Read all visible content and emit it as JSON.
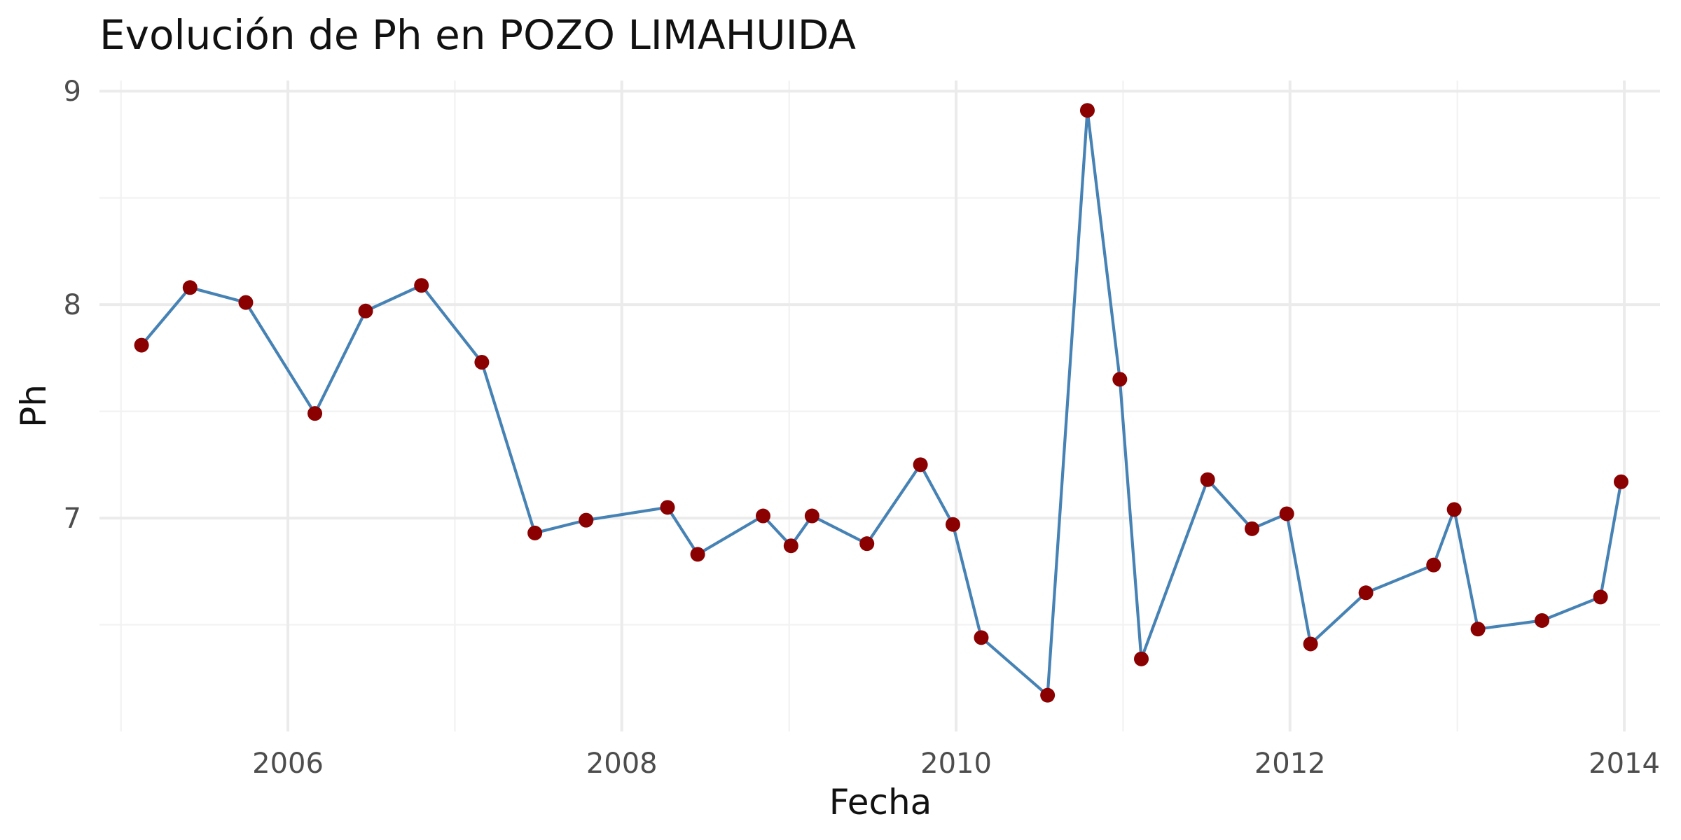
{
  "chart_data": {
    "type": "line",
    "title": "Evolución de Ph en POZO LIMAHUIDA",
    "xlabel": "Fecha",
    "ylabel": "Ph",
    "xlim": [
      "2004-11-15",
      "2014-03-20"
    ],
    "ylim": [
      6.0,
      9.05
    ],
    "x_ticks": [
      "2006",
      "2008",
      "2010",
      "2012",
      "2014"
    ],
    "y_ticks": [
      7,
      8,
      9
    ],
    "grid": true,
    "legend": "none",
    "line_color": "#4682B4",
    "point_color": "#8B0000",
    "series": [
      {
        "x": [
          "2005-02-15",
          "2005-06-01",
          "2005-10-01",
          "2006-03-01",
          "2006-06-20",
          "2006-10-20",
          "2007-03-01",
          "2007-06-25",
          "2007-10-15",
          "2008-04-10",
          "2008-06-15",
          "2008-11-05",
          "2009-01-05",
          "2009-02-20",
          "2009-06-20",
          "2009-10-15",
          "2009-12-25",
          "2010-02-25",
          "2010-07-20",
          "2010-10-15",
          "2010-12-25",
          "2011-02-10",
          "2011-07-05",
          "2011-10-10",
          "2011-12-25",
          "2012-02-15",
          "2012-06-15",
          "2012-11-10",
          "2012-12-25",
          "2013-02-15",
          "2013-07-05",
          "2013-11-10",
          "2013-12-25"
        ],
        "y": [
          7.81,
          8.08,
          8.01,
          7.49,
          7.97,
          8.09,
          7.73,
          6.93,
          6.99,
          7.05,
          6.83,
          7.01,
          6.87,
          7.01,
          6.88,
          7.25,
          6.97,
          6.44,
          6.17,
          8.91,
          7.65,
          6.34,
          7.18,
          6.95,
          7.02,
          6.41,
          6.65,
          6.78,
          7.04,
          6.48,
          6.52,
          6.63,
          7.17
        ]
      }
    ]
  }
}
